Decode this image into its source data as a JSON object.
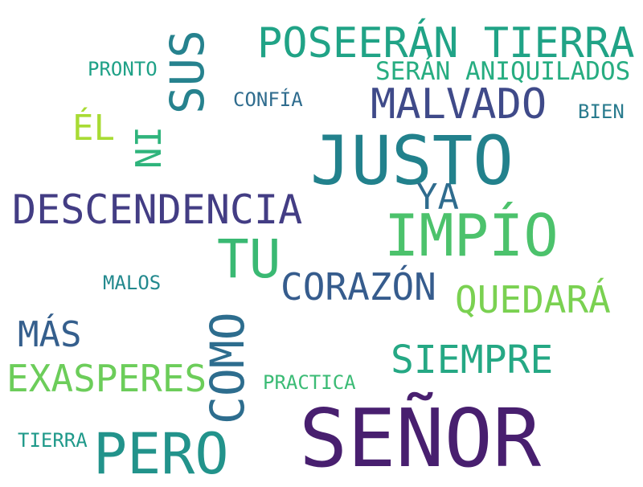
{
  "words": {
    "senor": {
      "text": "SEÑOR",
      "color": "#481f6f"
    },
    "justo": {
      "text": "JUSTO",
      "color": "#22818c"
    },
    "impio": {
      "text": "IMPÍO",
      "color": "#4cc26c"
    },
    "pero": {
      "text": "PERO",
      "color": "#22938b"
    },
    "descendencia": {
      "text": "DESCENDENCIA",
      "color": "#433d84"
    },
    "poseeran": {
      "text": "POSEERÁN TIERRA",
      "color": "#20a386"
    },
    "sus": {
      "text": "SUS",
      "color": "#26828e"
    },
    "como": {
      "text": "COMO",
      "color": "#2d6d8e"
    },
    "tu": {
      "text": "TU",
      "color": "#3ab973"
    },
    "malvado": {
      "text": "MALVADO",
      "color": "#3f4a89"
    },
    "corazon": {
      "text": "CORAZÓN",
      "color": "#365c8d"
    },
    "quedara": {
      "text": "QUEDARÁ",
      "color": "#7ad151"
    },
    "siempre": {
      "text": "SIEMPRE",
      "color": "#25a884"
    },
    "exasperes": {
      "text": "EXASPERES",
      "color": "#6ccd5a"
    },
    "mas": {
      "text": "MÁS",
      "color": "#355f8d"
    },
    "ya": {
      "text": "YA",
      "color": "#2f6c8e"
    },
    "ni": {
      "text": "NI",
      "color": "#2fb47c"
    },
    "el": {
      "text": "ÉL",
      "color": "#a8db34"
    },
    "seran": {
      "text": "SERÁN ANIQUILADOS",
      "color": "#27ad81"
    },
    "confia": {
      "text": "CONFÍA",
      "color": "#2f6c8e"
    },
    "pronto": {
      "text": "PRONTO",
      "color": "#1fa187"
    },
    "bien": {
      "text": "BIEN",
      "color": "#297b8e"
    },
    "malos": {
      "text": "MALOS",
      "color": "#23898e"
    },
    "practica": {
      "text": "PRACTICA",
      "color": "#3bbb75"
    },
    "tierra": {
      "text": "TIERRA",
      "color": "#1f998a"
    }
  }
}
